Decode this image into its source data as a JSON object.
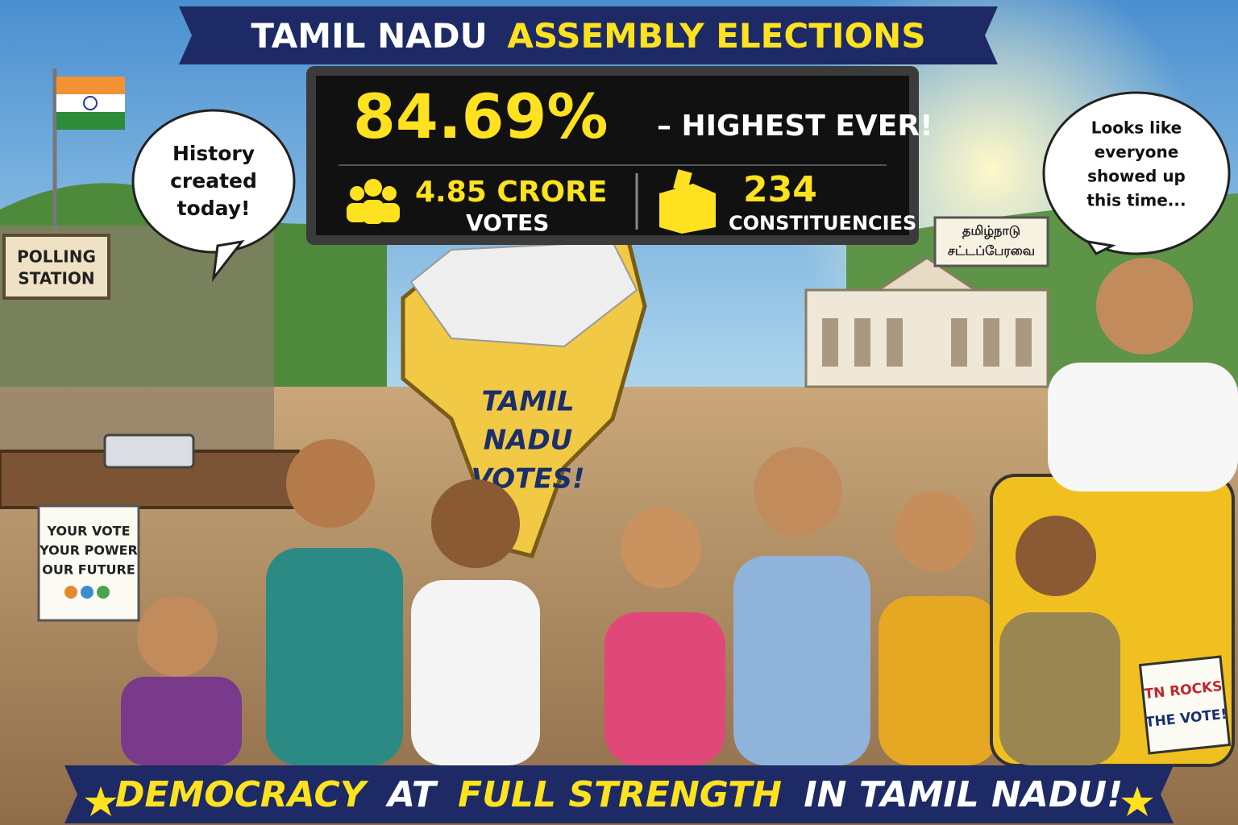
{
  "header": {
    "title_part1": "TAMIL NADU",
    "title_part2": "ASSEMBLY ELECTIONS"
  },
  "board": {
    "turnout": "84.69%",
    "turnout_note": "– HIGHEST EVER!",
    "votes_value": "4.85 CRORE",
    "votes_label": "VOTES",
    "constituencies_value": "234",
    "constituencies_label": "CONSTITUENCIES"
  },
  "bubbles": {
    "left": [
      "History",
      "created",
      "today!"
    ],
    "right": [
      "Looks like",
      "everyone",
      "showed up",
      "this time..."
    ]
  },
  "signs": {
    "polling": [
      "POLLING",
      "STATION"
    ],
    "poster": [
      "YOUR VOTE",
      "YOUR POWER",
      "OUR FUTURE"
    ],
    "map": [
      "TAMIL",
      "NADU",
      "VOTES!"
    ],
    "assembly": [
      "தமிழ்நாடு",
      "சட்டப்பேரவை"
    ],
    "auto": [
      "TN ROCKS",
      "THE VOTE!"
    ]
  },
  "footer": {
    "part1": "DEMOCRACY",
    "part2": "AT",
    "part3": "FULL STRENGTH",
    "part4": "IN TAMIL NADU!"
  }
}
